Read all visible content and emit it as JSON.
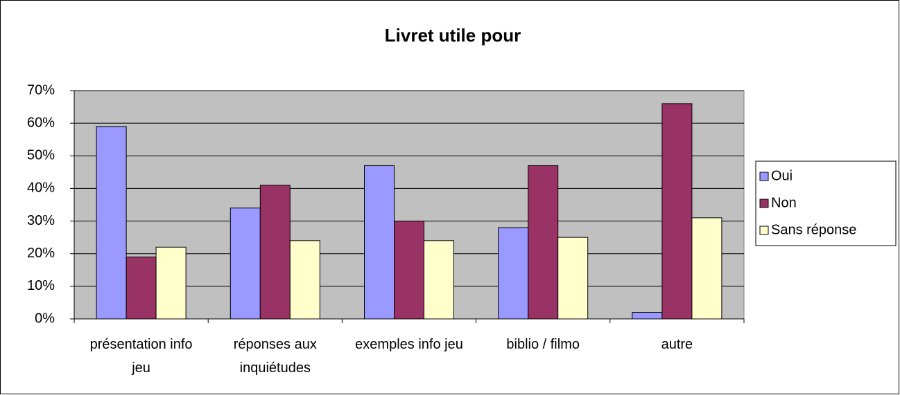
{
  "chart_data": {
    "type": "bar",
    "title": "Livret utile pour",
    "categories": [
      "présentation info jeu",
      "réponses aux inquiétudes",
      "exemples info jeu",
      "biblio / filmo",
      "autre"
    ],
    "series": [
      {
        "name": "Oui",
        "color": "#9999ff",
        "values": [
          59,
          34,
          47,
          28,
          2
        ]
      },
      {
        "name": "Non",
        "color": "#993366",
        "values": [
          19,
          41,
          30,
          47,
          66
        ]
      },
      {
        "name": "Sans réponse",
        "color": "#ffffcc",
        "values": [
          22,
          24,
          24,
          25,
          31
        ]
      }
    ],
    "ylim": [
      0,
      70
    ],
    "yticks": [
      {
        "value": 0,
        "label": "0%"
      },
      {
        "value": 10,
        "label": "10%"
      },
      {
        "value": 20,
        "label": "20%"
      },
      {
        "value": 30,
        "label": "30%"
      },
      {
        "value": 40,
        "label": "40%"
      },
      {
        "value": 50,
        "label": "50%"
      },
      {
        "value": 60,
        "label": "60%"
      },
      {
        "value": 70,
        "label": "70%"
      }
    ],
    "grid": true,
    "legend": "right",
    "plot_background": "#c0c0c0"
  }
}
